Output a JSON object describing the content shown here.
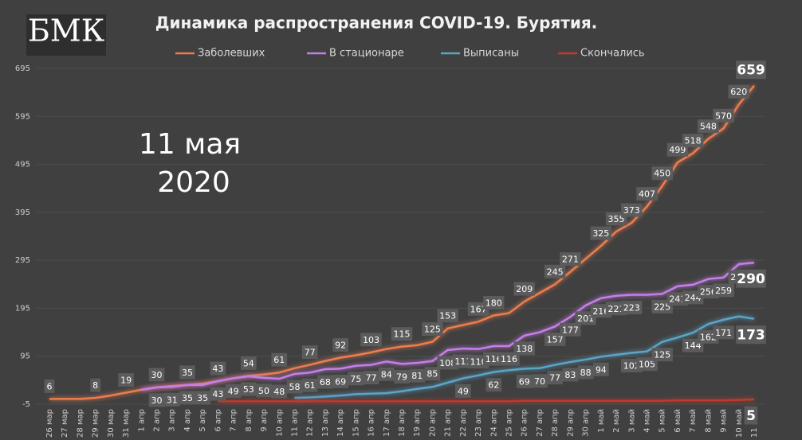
{
  "chart_data": {
    "type": "line",
    "title": "Динамика распространения COVID-19. Бурятия.",
    "logo": "БМК",
    "annotation": [
      "11 мая",
      "2020"
    ],
    "categories": [
      "26 мар",
      "27 мар",
      "28 мар",
      "29 мар",
      "30 мар",
      "31 мар",
      "1 апр",
      "2 апр",
      "3 апр",
      "4 апр",
      "5 апр",
      "6 апр",
      "7 апр",
      "8 апр",
      "9 апр",
      "10 апр",
      "11 апр",
      "12 апр",
      "13 апр",
      "14 апр",
      "15 апр",
      "16 апр",
      "17 апр",
      "18 апр",
      "19 апр",
      "20 апр",
      "21 апр",
      "22 апр",
      "23 апр",
      "24 апр",
      "25 апр",
      "26 апр",
      "27 апр",
      "28 апр",
      "29 апр",
      "30 апр",
      "1 май",
      "2 май",
      "3 май",
      "4 май",
      "5 май",
      "6 май",
      "7 май",
      "8 май",
      "9 май",
      "10 май",
      "11 май"
    ],
    "ylim": [
      -5,
      695
    ],
    "yticks": [
      -5,
      95,
      195,
      295,
      395,
      495,
      595,
      695
    ],
    "grid": true,
    "series": [
      {
        "name": "Заболевших",
        "color": "#ed7d4f",
        "values": [
          6,
          6,
          6,
          8,
          13,
          19,
          25,
          30,
          33,
          35,
          38,
          43,
          49,
          54,
          57,
          61,
          70,
          77,
          85,
          92,
          97,
          103,
          110,
          115,
          118,
          125,
          153,
          160,
          167,
          180,
          185,
          209,
          227,
          245,
          271,
          298,
          325,
          355,
          373,
          407,
          450,
          499,
          518,
          548,
          570,
          620,
          659
        ],
        "value_labels": [
          "6",
          null,
          null,
          "8",
          null,
          "19",
          null,
          "30",
          null,
          "35",
          null,
          "43",
          null,
          "54",
          null,
          "61",
          null,
          "77",
          null,
          "92",
          null,
          "103",
          null,
          "115",
          null,
          "125",
          "153",
          null,
          "167",
          "180",
          null,
          "209",
          null,
          "245",
          "271",
          null,
          "325",
          "355",
          "373",
          "407",
          "450",
          "499",
          "518",
          "548",
          "570",
          "620",
          "659"
        ]
      },
      {
        "name": "В стационаре",
        "color": "#c77ee8",
        "values": [
          null,
          null,
          null,
          null,
          null,
          null,
          25,
          30,
          31,
          35,
          35,
          43,
          49,
          53,
          50,
          48,
          58,
          61,
          68,
          69,
          75,
          77,
          84,
          79,
          81,
          85,
          108,
          111,
          110,
          116,
          116,
          138,
          145,
          157,
          177,
          201,
          216,
          221,
          223,
          223,
          225,
          241,
          244,
          256,
          259,
          287,
          290
        ],
        "value_labels": [
          null,
          null,
          null,
          null,
          null,
          null,
          null,
          "30",
          "31",
          "35",
          "35",
          "43",
          "49",
          "53",
          "50",
          "48",
          "58",
          "61",
          "68",
          "69",
          "75",
          "77",
          "84",
          "79",
          "81",
          "85",
          "108",
          "111",
          "110",
          "116",
          "116",
          "138",
          null,
          "157",
          "177",
          "201",
          "216",
          "221",
          "223",
          null,
          "225",
          "241",
          "244",
          "256",
          "259",
          "287",
          "290"
        ]
      },
      {
        "name": "Выписаны",
        "color": "#5aa5c8",
        "values": [
          null,
          null,
          null,
          null,
          null,
          null,
          null,
          null,
          null,
          null,
          null,
          null,
          null,
          null,
          null,
          null,
          8,
          9,
          11,
          13,
          16,
          17,
          18,
          22,
          27,
          31,
          40,
          49,
          55,
          62,
          66,
          69,
          70,
          77,
          83,
          88,
          94,
          98,
          102,
          105,
          125,
          134,
          144,
          162,
          171,
          178,
          173
        ],
        "value_labels": [
          null,
          null,
          null,
          null,
          null,
          null,
          null,
          null,
          null,
          null,
          null,
          null,
          null,
          null,
          null,
          null,
          null,
          null,
          null,
          null,
          null,
          null,
          null,
          null,
          null,
          null,
          null,
          "49",
          null,
          "62",
          null,
          "69",
          "70",
          "77",
          "83",
          "88",
          "94",
          null,
          "102",
          "105",
          "125",
          null,
          "144",
          "162",
          "171",
          null,
          "173"
        ]
      },
      {
        "name": "Скончались",
        "color": "#c0392b",
        "values": [
          null,
          null,
          null,
          null,
          null,
          null,
          null,
          null,
          null,
          null,
          null,
          1,
          1,
          1,
          1,
          1,
          1,
          1,
          1,
          1,
          1,
          1,
          1,
          1,
          1,
          1,
          1,
          1,
          1,
          1,
          1,
          2,
          2,
          2,
          2,
          2,
          2,
          2,
          2,
          2,
          2,
          3,
          3,
          3,
          3,
          4,
          5
        ],
        "value_labels": [
          null,
          null,
          null,
          null,
          null,
          null,
          null,
          null,
          null,
          null,
          null,
          null,
          null,
          null,
          null,
          null,
          null,
          null,
          null,
          null,
          null,
          null,
          null,
          null,
          null,
          null,
          null,
          null,
          null,
          null,
          null,
          null,
          null,
          null,
          null,
          null,
          null,
          null,
          null,
          null,
          null,
          null,
          null,
          null,
          null,
          null,
          "5"
        ]
      }
    ]
  }
}
